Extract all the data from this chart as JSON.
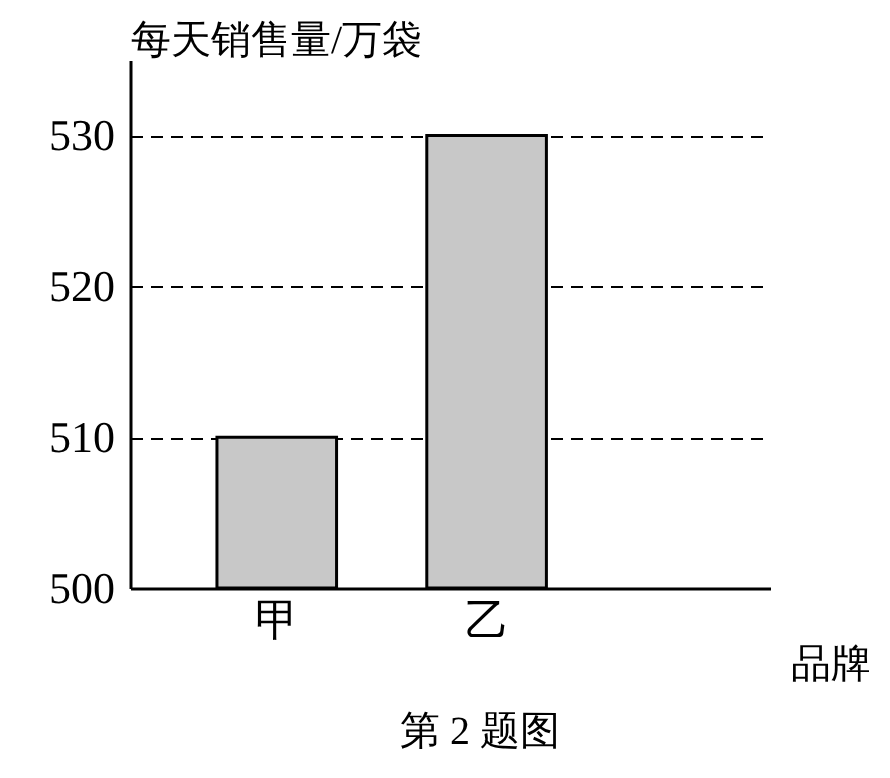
{
  "chart_data": {
    "type": "bar",
    "categories": [
      "甲",
      "乙"
    ],
    "values": [
      510,
      530
    ],
    "color": "#c8c8c8",
    "ylim": [
      500,
      535
    ],
    "yticks": [
      500,
      510,
      520,
      530
    ],
    "grid": "y",
    "line_style": "dashed",
    "xlabel": "品牌",
    "ylabel": "每天销售量/万袋",
    "annotations": [
      "第 2 题图"
    ]
  }
}
